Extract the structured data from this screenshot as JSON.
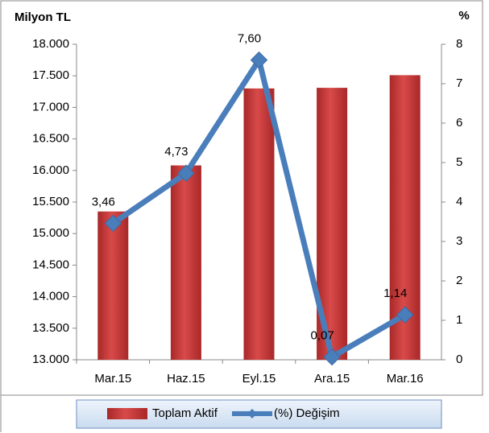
{
  "chart_data": {
    "type": "bar",
    "y_label": "Milyon TL",
    "y2_label": "%",
    "categories": [
      "Mar.15",
      "Haz.15",
      "Eyl.15",
      "Ara.15",
      "Mar.16"
    ],
    "series": [
      {
        "name": "Toplam Aktif",
        "type": "bar",
        "color": "#c83c3c",
        "values": [
          15350,
          16080,
          17300,
          17310,
          17510
        ]
      },
      {
        "name": "(%) Değişim",
        "type": "line",
        "axis": "y2",
        "color": "#4a7ebb",
        "values": [
          3.46,
          4.73,
          7.6,
          0.07,
          1.14
        ],
        "value_labels": [
          "3,46",
          "4,73",
          "7,60",
          "0,07",
          "1,14"
        ]
      }
    ],
    "ylim": [
      13000,
      18000
    ],
    "yticks": [
      {
        "value": 13000,
        "label": "13.000"
      },
      {
        "value": 13500,
        "label": "13.500"
      },
      {
        "value": 14000,
        "label": "14.000"
      },
      {
        "value": 14500,
        "label": "14.500"
      },
      {
        "value": 15000,
        "label": "15.000"
      },
      {
        "value": 15500,
        "label": "15.500"
      },
      {
        "value": 16000,
        "label": "16.000"
      },
      {
        "value": 16500,
        "label": "16.500"
      },
      {
        "value": 17000,
        "label": "17.000"
      },
      {
        "value": 17500,
        "label": "17.500"
      },
      {
        "value": 18000,
        "label": "18.000"
      }
    ],
    "y2lim": [
      0,
      8
    ],
    "y2ticks": [
      0,
      1,
      2,
      3,
      4,
      5,
      6,
      7,
      8
    ],
    "grid": false,
    "legend": "bottom"
  }
}
